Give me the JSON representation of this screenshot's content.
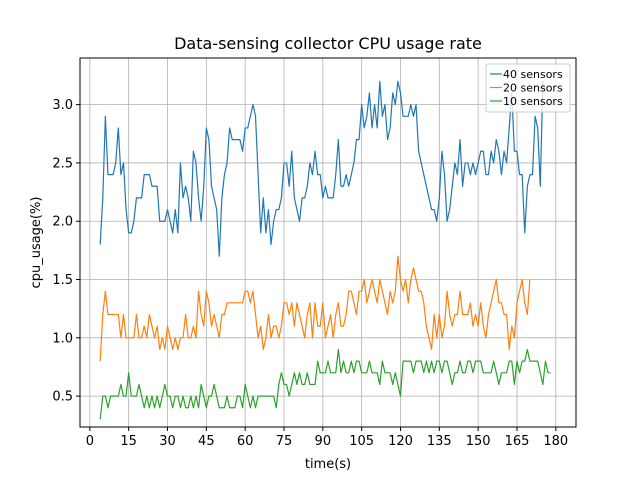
{
  "chart_data": {
    "type": "line",
    "title": "Data-sensing collector CPU usage rate",
    "xlabel": "time(s)",
    "ylabel": "cpu_usage(%)",
    "xlim": [
      -3.8,
      187.8
    ],
    "ylim": [
      0.235,
      3.4
    ],
    "xticks": [
      0,
      15,
      30,
      45,
      60,
      75,
      90,
      105,
      120,
      135,
      150,
      165,
      180
    ],
    "yticks": [
      0.5,
      1.0,
      1.5,
      2.0,
      2.5,
      3.0
    ],
    "ytick_labels": [
      "0.5",
      "1.0",
      "1.5",
      "2.0",
      "2.5",
      "3.0"
    ],
    "grid": true,
    "legend_position": "top-right",
    "x_start": 4,
    "x_step": 1,
    "series": [
      {
        "name": "40 sensors",
        "color": "#1f77b4",
        "values": [
          1.8,
          2.2,
          2.9,
          2.4,
          2.4,
          2.4,
          2.5,
          2.8,
          2.4,
          2.5,
          2.1,
          1.9,
          1.9,
          2.0,
          2.2,
          2.2,
          2.2,
          2.4,
          2.4,
          2.4,
          2.3,
          2.3,
          2.3,
          2.0,
          2.0,
          2.0,
          2.1,
          2.0,
          1.9,
          2.1,
          1.9,
          2.5,
          2.2,
          2.3,
          2.2,
          2.0,
          2.6,
          2.5,
          2.2,
          2.0,
          2.3,
          2.8,
          2.7,
          2.3,
          2.2,
          2.1,
          1.7,
          2.2,
          2.4,
          2.5,
          2.8,
          2.7,
          2.7,
          2.7,
          2.7,
          2.6,
          2.8,
          2.8,
          2.9,
          3.0,
          2.9,
          2.4,
          1.9,
          2.2,
          1.9,
          2.1,
          1.8,
          2.0,
          2.1,
          2.1,
          2.2,
          2.5,
          2.5,
          2.3,
          2.6,
          2.2,
          2.1,
          2.0,
          2.2,
          2.2,
          2.3,
          2.5,
          2.4,
          2.6,
          2.4,
          2.4,
          2.2,
          2.3,
          2.2,
          2.2,
          2.2,
          2.4,
          2.7,
          2.3,
          2.3,
          2.4,
          2.3,
          2.4,
          2.5,
          2.7,
          2.7,
          3.0,
          2.8,
          2.9,
          3.1,
          2.8,
          3.0,
          2.8,
          3.2,
          2.9,
          3.0,
          2.7,
          2.8,
          3.1,
          3.0,
          3.2,
          3.1,
          2.9,
          2.9,
          2.9,
          3.0,
          2.9,
          3.0,
          2.6,
          2.5,
          2.4,
          2.3,
          2.2,
          2.1,
          2.1,
          2.0,
          2.2,
          2.6,
          2.4,
          2.0,
          2.1,
          2.3,
          2.5,
          2.4,
          2.7,
          2.3,
          2.5,
          2.5,
          2.4,
          2.5,
          2.4,
          2.5,
          2.6,
          2.6,
          2.4,
          2.4,
          2.6,
          2.5,
          2.7,
          2.6,
          2.4,
          2.6,
          2.5,
          2.8,
          3.1,
          2.6,
          2.6,
          2.4,
          2.4,
          1.9,
          2.3,
          2.4,
          2.4,
          2.9,
          2.8,
          2.3,
          3.2,
          3.1
        ]
      },
      {
        "name": "20 sensors",
        "color": "#ff7f0e",
        "values": [
          0.8,
          1.2,
          1.4,
          1.2,
          1.2,
          1.2,
          1.2,
          1.2,
          1.0,
          1.2,
          1.0,
          1.0,
          1.0,
          1.0,
          1.2,
          1.0,
          1.0,
          1.1,
          1.0,
          1.2,
          1.1,
          1.0,
          1.1,
          0.9,
          1.0,
          0.9,
          1.1,
          1.0,
          0.9,
          1.0,
          0.9,
          1.0,
          1.0,
          1.2,
          1.0,
          1.0,
          1.1,
          1.0,
          1.4,
          1.2,
          1.1,
          1.4,
          1.3,
          1.1,
          1.2,
          1.1,
          1.0,
          1.2,
          1.2,
          1.3,
          1.3,
          1.3,
          1.3,
          1.3,
          1.3,
          1.3,
          1.4,
          1.4,
          1.3,
          1.4,
          1.2,
          1.0,
          1.1,
          0.9,
          1.0,
          1.2,
          1.0,
          1.1,
          1.1,
          1.0,
          1.1,
          1.3,
          1.3,
          1.2,
          1.3,
          1.1,
          1.3,
          1.2,
          1.1,
          1.0,
          1.2,
          1.3,
          1.0,
          1.3,
          1.1,
          1.1,
          1.3,
          1.0,
          1.1,
          1.2,
          1.0,
          1.2,
          1.3,
          1.1,
          1.1,
          1.2,
          1.4,
          1.4,
          1.3,
          1.2,
          1.4,
          1.4,
          1.5,
          1.3,
          1.4,
          1.5,
          1.4,
          1.3,
          1.5,
          1.4,
          1.3,
          1.2,
          1.4,
          1.3,
          1.4,
          1.7,
          1.5,
          1.4,
          1.5,
          1.3,
          1.5,
          1.6,
          1.5,
          1.4,
          1.4,
          1.3,
          1.1,
          1.0,
          0.9,
          1.2,
          1.0,
          1.2,
          1.0,
          1.1,
          1.4,
          1.2,
          1.1,
          1.2,
          1.2,
          1.4,
          1.2,
          1.2,
          1.2,
          1.3,
          1.1,
          1.2,
          1.1,
          1.3,
          1.1,
          1.0,
          1.2,
          1.3,
          1.4,
          1.5,
          1.3,
          1.3,
          1.2,
          1.2,
          0.9,
          1.1,
          1.0,
          1.3,
          1.4,
          1.5,
          1.3,
          1.2,
          1.5
        ]
      },
      {
        "name": "10 sensors",
        "color": "#2ca02c",
        "values": [
          0.3,
          0.5,
          0.5,
          0.4,
          0.5,
          0.5,
          0.5,
          0.5,
          0.6,
          0.5,
          0.5,
          0.7,
          0.5,
          0.5,
          0.5,
          0.6,
          0.5,
          0.4,
          0.5,
          0.4,
          0.5,
          0.4,
          0.5,
          0.4,
          0.5,
          0.6,
          0.5,
          0.5,
          0.4,
          0.5,
          0.5,
          0.4,
          0.5,
          0.4,
          0.4,
          0.5,
          0.4,
          0.5,
          0.4,
          0.6,
          0.5,
          0.4,
          0.5,
          0.5,
          0.6,
          0.5,
          0.4,
          0.4,
          0.4,
          0.5,
          0.4,
          0.4,
          0.4,
          0.5,
          0.5,
          0.4,
          0.6,
          0.5,
          0.4,
          0.5,
          0.4,
          0.5,
          0.5,
          0.5,
          0.5,
          0.5,
          0.5,
          0.5,
          0.4,
          0.6,
          0.7,
          0.6,
          0.6,
          0.5,
          0.6,
          0.7,
          0.6,
          0.7,
          0.6,
          0.6,
          0.7,
          0.6,
          0.6,
          0.6,
          0.8,
          0.7,
          0.7,
          0.7,
          0.8,
          0.7,
          0.7,
          0.7,
          0.9,
          0.7,
          0.8,
          0.7,
          0.7,
          0.8,
          0.7,
          0.8,
          0.8,
          0.7,
          0.7,
          0.7,
          0.8,
          0.7,
          0.7,
          0.7,
          0.6,
          0.8,
          0.7,
          0.7,
          0.7,
          0.6,
          0.7,
          0.6,
          0.5,
          0.8,
          0.8,
          0.8,
          0.8,
          0.7,
          0.8,
          0.8,
          0.8,
          0.7,
          0.8,
          0.7,
          0.8,
          0.7,
          0.8,
          0.8,
          0.7,
          0.8,
          0.8,
          0.7,
          0.6,
          0.7,
          0.7,
          0.8,
          0.7,
          0.7,
          0.8,
          0.8,
          0.7,
          0.8,
          0.8,
          0.8,
          0.7,
          0.7,
          0.7,
          0.7,
          0.8,
          0.7,
          0.6,
          0.7,
          0.7,
          0.7,
          0.8,
          0.8,
          0.6,
          0.8,
          0.7,
          0.8,
          0.8,
          0.9,
          0.8,
          0.8,
          0.8,
          0.8,
          0.7,
          0.6,
          0.8,
          0.7,
          0.7
        ]
      }
    ]
  }
}
